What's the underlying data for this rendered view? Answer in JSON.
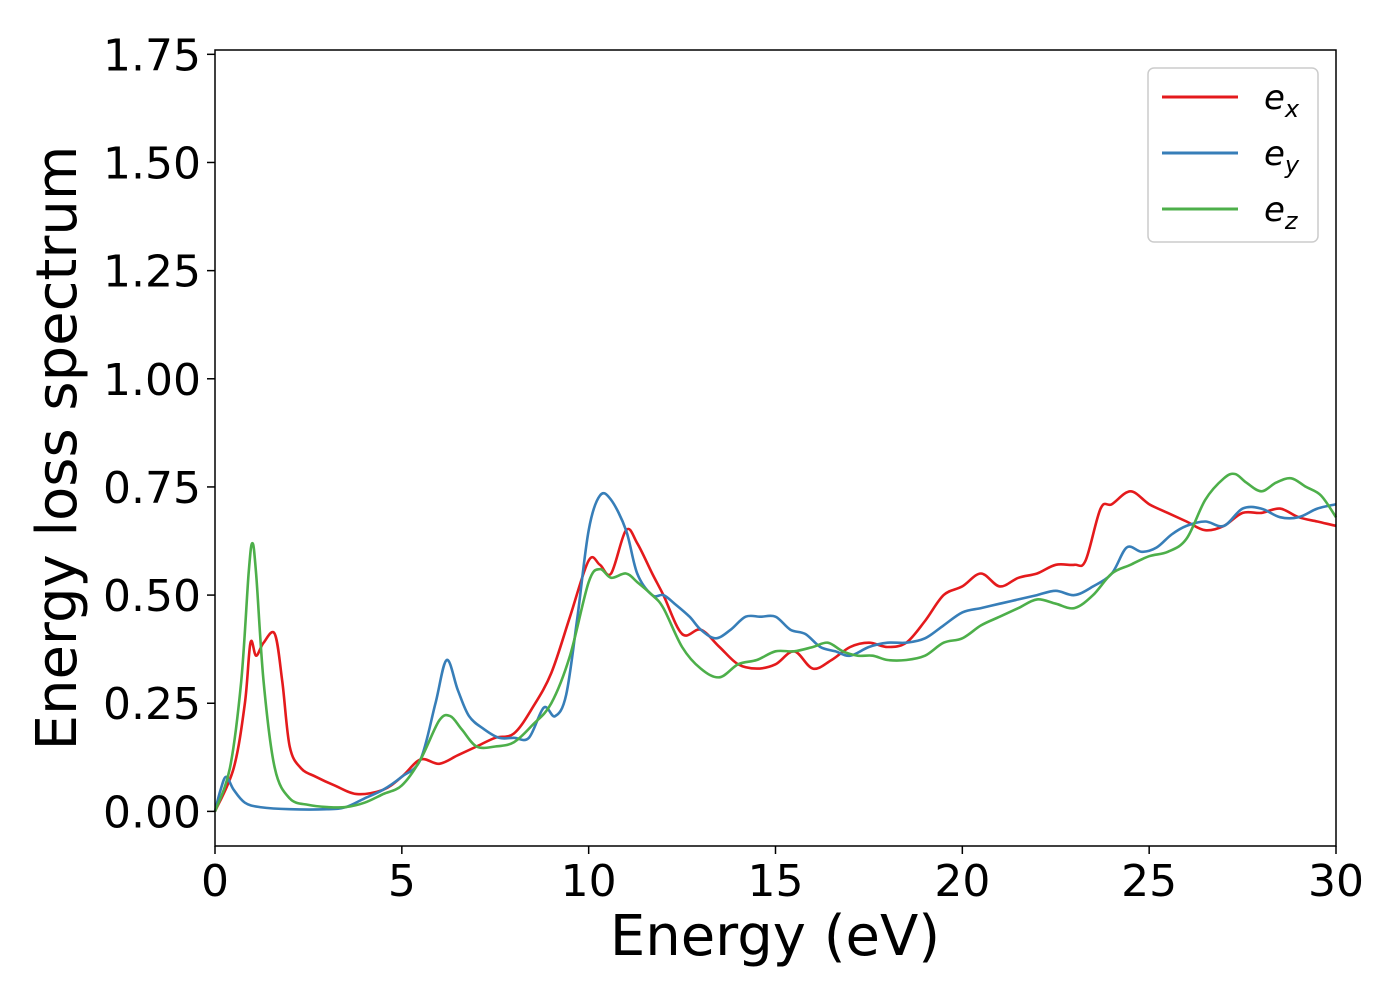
{
  "chart_data": {
    "type": "line",
    "title": "",
    "xlabel": "Energy (eV)",
    "ylabel": "Energy loss spectrum",
    "xlim": [
      0,
      30
    ],
    "ylim": [
      -0.08,
      1.76
    ],
    "xticks": [
      0,
      5,
      10,
      15,
      20,
      25,
      30
    ],
    "xtick_labels": [
      "0",
      "5",
      "10",
      "15",
      "20",
      "25",
      "30"
    ],
    "yticks": [
      0,
      0.25,
      0.5,
      0.75,
      1.0,
      1.25,
      1.5,
      1.75
    ],
    "ytick_labels": [
      "0.00",
      "0.25",
      "0.50",
      "0.75",
      "1.00",
      "1.25",
      "1.50",
      "1.75"
    ],
    "grid": false,
    "legend_position": "top-right",
    "series": [
      {
        "name": "e",
        "subscript": "x",
        "color": "#e41a1c",
        "x": [
          0,
          0.5,
          0.8,
          0.95,
          1.1,
          1.3,
          1.6,
          1.8,
          2.0,
          2.3,
          2.7,
          3.2,
          3.8,
          4.5,
          5.0,
          5.5,
          6.0,
          6.5,
          7.0,
          7.5,
          8.0,
          8.5,
          9.0,
          9.5,
          10.0,
          10.3,
          10.6,
          11.0,
          11.3,
          11.7,
          12.0,
          12.5,
          13.0,
          13.5,
          14.0,
          14.5,
          15.0,
          15.5,
          16.0,
          16.5,
          17.0,
          17.5,
          18.0,
          18.5,
          19.0,
          19.5,
          20.0,
          20.5,
          21.0,
          21.5,
          22.0,
          22.5,
          23.0,
          23.3,
          23.7,
          24.0,
          24.5,
          25.0,
          25.5,
          26.0,
          26.5,
          27.0,
          27.5,
          28.0,
          28.5,
          29.0,
          29.5,
          30.0
        ],
        "y": [
          0,
          0.1,
          0.25,
          0.39,
          0.36,
          0.39,
          0.41,
          0.3,
          0.15,
          0.1,
          0.08,
          0.06,
          0.04,
          0.05,
          0.08,
          0.12,
          0.11,
          0.13,
          0.15,
          0.17,
          0.18,
          0.24,
          0.32,
          0.45,
          0.58,
          0.57,
          0.55,
          0.65,
          0.62,
          0.55,
          0.5,
          0.41,
          0.42,
          0.38,
          0.34,
          0.33,
          0.34,
          0.37,
          0.33,
          0.35,
          0.38,
          0.39,
          0.38,
          0.39,
          0.44,
          0.5,
          0.52,
          0.55,
          0.52,
          0.54,
          0.55,
          0.57,
          0.57,
          0.58,
          0.7,
          0.71,
          0.74,
          0.71,
          0.69,
          0.67,
          0.65,
          0.66,
          0.69,
          0.69,
          0.7,
          0.68,
          0.67,
          0.66
        ]
      },
      {
        "name": "e",
        "subscript": "y",
        "color": "#377eb8",
        "x": [
          0,
          0.15,
          0.3,
          0.5,
          0.8,
          1.2,
          2.0,
          3.0,
          3.5,
          4.0,
          4.5,
          5.0,
          5.5,
          5.9,
          6.2,
          6.5,
          6.8,
          7.2,
          7.6,
          8.0,
          8.4,
          8.8,
          9.1,
          9.4,
          9.7,
          10.0,
          10.3,
          10.6,
          11.0,
          11.3,
          11.7,
          12.0,
          12.3,
          12.7,
          13.0,
          13.4,
          13.8,
          14.2,
          14.6,
          15.0,
          15.4,
          15.8,
          16.2,
          16.6,
          17.0,
          17.5,
          18.0,
          18.5,
          19.0,
          19.5,
          20.0,
          20.5,
          21.0,
          21.5,
          22.0,
          22.5,
          23.0,
          23.5,
          24.0,
          24.4,
          24.8,
          25.2,
          25.6,
          26.0,
          26.5,
          27.0,
          27.5,
          28.0,
          28.5,
          29.0,
          29.5,
          30.0
        ],
        "y": [
          0,
          0.05,
          0.08,
          0.05,
          0.02,
          0.01,
          0.005,
          0.005,
          0.01,
          0.03,
          0.05,
          0.08,
          0.12,
          0.25,
          0.35,
          0.28,
          0.22,
          0.19,
          0.17,
          0.17,
          0.17,
          0.24,
          0.22,
          0.27,
          0.45,
          0.65,
          0.73,
          0.72,
          0.65,
          0.55,
          0.5,
          0.5,
          0.48,
          0.45,
          0.42,
          0.4,
          0.42,
          0.45,
          0.45,
          0.45,
          0.42,
          0.41,
          0.38,
          0.37,
          0.36,
          0.38,
          0.39,
          0.39,
          0.4,
          0.43,
          0.46,
          0.47,
          0.48,
          0.49,
          0.5,
          0.51,
          0.5,
          0.52,
          0.55,
          0.61,
          0.6,
          0.61,
          0.64,
          0.66,
          0.67,
          0.66,
          0.7,
          0.7,
          0.68,
          0.68,
          0.7,
          0.71
        ]
      },
      {
        "name": "e",
        "subscript": "z",
        "color": "#4daf4a",
        "x": [
          0,
          0.4,
          0.7,
          0.9,
          1.0,
          1.1,
          1.3,
          1.6,
          2.0,
          2.5,
          3.0,
          3.5,
          4.0,
          4.5,
          5.0,
          5.5,
          6.0,
          6.3,
          6.6,
          7.0,
          7.5,
          8.0,
          8.5,
          9.0,
          9.5,
          10.0,
          10.3,
          10.6,
          11.0,
          11.3,
          11.7,
          12.0,
          12.5,
          13.0,
          13.5,
          14.0,
          14.5,
          15.0,
          15.5,
          16.0,
          16.4,
          16.8,
          17.2,
          17.6,
          18.0,
          18.5,
          19.0,
          19.5,
          20.0,
          20.5,
          21.0,
          21.5,
          22.0,
          22.5,
          23.0,
          23.5,
          24.0,
          24.5,
          25.0,
          25.5,
          26.0,
          26.5,
          27.0,
          27.3,
          27.6,
          28.0,
          28.4,
          28.8,
          29.2,
          29.6,
          30.0
        ],
        "y": [
          0,
          0.1,
          0.3,
          0.55,
          0.62,
          0.55,
          0.3,
          0.1,
          0.03,
          0.015,
          0.01,
          0.01,
          0.02,
          0.04,
          0.06,
          0.12,
          0.21,
          0.22,
          0.19,
          0.15,
          0.15,
          0.16,
          0.2,
          0.25,
          0.36,
          0.53,
          0.56,
          0.54,
          0.55,
          0.53,
          0.5,
          0.47,
          0.38,
          0.33,
          0.31,
          0.34,
          0.35,
          0.37,
          0.37,
          0.38,
          0.39,
          0.37,
          0.36,
          0.36,
          0.35,
          0.35,
          0.36,
          0.39,
          0.4,
          0.43,
          0.45,
          0.47,
          0.49,
          0.48,
          0.47,
          0.5,
          0.55,
          0.57,
          0.59,
          0.6,
          0.63,
          0.72,
          0.77,
          0.78,
          0.76,
          0.74,
          0.76,
          0.77,
          0.75,
          0.73,
          0.68
        ]
      }
    ]
  }
}
